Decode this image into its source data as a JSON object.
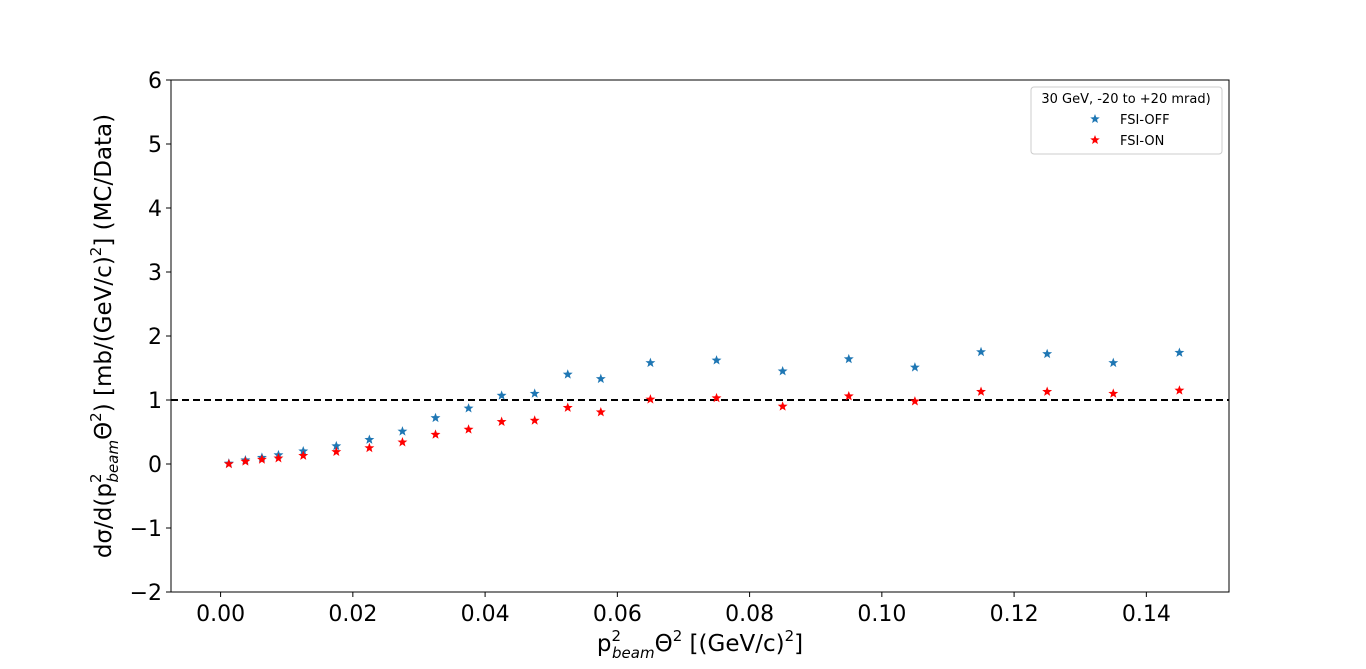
{
  "chart_data": {
    "type": "scatter",
    "xlabel": {
      "base": "p",
      "sup": "2",
      "sub": "beam",
      "theta": "Θ",
      "theta_sup": "2",
      "unit_open": " [(GeV/c)",
      "unit_sup": "2",
      "unit_close": "]"
    },
    "ylabel": {
      "prefix": "dσ/d(p",
      "sup": "2",
      "sub": "beam",
      "theta": "Θ",
      "theta_sup": "2",
      "mid": ") [mb/(GeV/c)",
      "unit_sup": "2",
      "suffix": "] (MC/Data)"
    },
    "xlim": [
      -0.0075,
      0.1525
    ],
    "ylim": [
      -2,
      6
    ],
    "xticks": [
      {
        "value": 0.0,
        "label": "0.00"
      },
      {
        "value": 0.02,
        "label": "0.02"
      },
      {
        "value": 0.04,
        "label": "0.04"
      },
      {
        "value": 0.06,
        "label": "0.06"
      },
      {
        "value": 0.08,
        "label": "0.08"
      },
      {
        "value": 0.1,
        "label": "0.10"
      },
      {
        "value": 0.12,
        "label": "0.12"
      },
      {
        "value": 0.14,
        "label": "0.14"
      }
    ],
    "yticks": [
      {
        "value": -2,
        "label": "−2"
      },
      {
        "value": -1,
        "label": "−1"
      },
      {
        "value": 0,
        "label": "0"
      },
      {
        "value": 1,
        "label": "1"
      },
      {
        "value": 2,
        "label": "2"
      },
      {
        "value": 3,
        "label": "3"
      },
      {
        "value": 4,
        "label": "4"
      },
      {
        "value": 5,
        "label": "5"
      },
      {
        "value": 6,
        "label": "6"
      }
    ],
    "reference_line": {
      "y": 1,
      "style": "dashed",
      "color": "#000000"
    },
    "grid": false,
    "legend": {
      "title": "30 GeV, -20 to +20 mrad)",
      "position": "top-right"
    },
    "x": [
      0.00125,
      0.00375,
      0.00625,
      0.00875,
      0.0125,
      0.0175,
      0.0225,
      0.0275,
      0.0325,
      0.0375,
      0.0425,
      0.0475,
      0.0525,
      0.0575,
      0.065,
      0.075,
      0.085,
      0.095,
      0.105,
      0.115,
      0.125,
      0.135,
      0.145
    ],
    "series": [
      {
        "name": "FSI-OFF",
        "color": "#1f77b4",
        "marker": "star",
        "values": [
          0.01,
          0.06,
          0.1,
          0.14,
          0.2,
          0.28,
          0.38,
          0.51,
          0.72,
          0.87,
          1.07,
          1.1,
          1.4,
          1.33,
          1.58,
          1.62,
          1.45,
          1.64,
          1.51,
          1.75,
          1.72,
          1.58,
          1.74
        ]
      },
      {
        "name": "FSI-ON",
        "color": "#ff0000",
        "marker": "star",
        "values": [
          0.0,
          0.04,
          0.07,
          0.09,
          0.13,
          0.19,
          0.25,
          0.34,
          0.46,
          0.54,
          0.66,
          0.68,
          0.88,
          0.81,
          1.01,
          1.03,
          0.9,
          1.06,
          0.98,
          1.13,
          1.13,
          1.1,
          1.15
        ]
      }
    ]
  }
}
